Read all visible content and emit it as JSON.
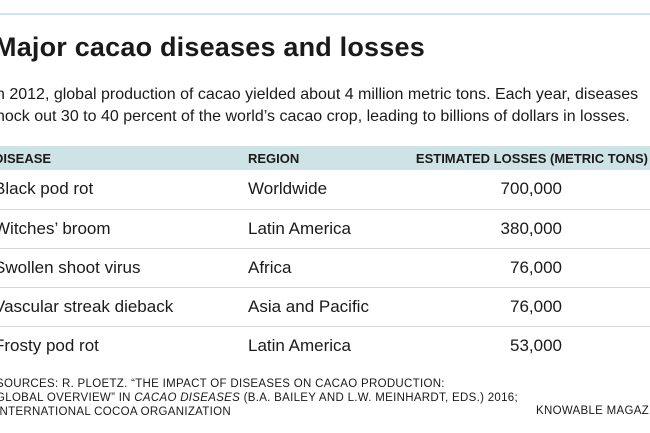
{
  "chart_data": {
    "type": "table",
    "title": "Major cacao diseases and losses",
    "intro_lines": [
      "n 2012, global production of cacao yielded about 4 million metric tons. Each year, diseases",
      "nock out 30 to 40 percent of the world’s cacao crop, leading to billions of dollars in losses."
    ],
    "columns": [
      "DISEASE",
      "REGION",
      "ESTIMATED LOSSES (METRIC TONS)"
    ],
    "rows": [
      {
        "disease": "Black pod rot",
        "region": "Worldwide",
        "losses": "700,000"
      },
      {
        "disease": "Witches’ broom",
        "region": "Latin America",
        "losses": "380,000"
      },
      {
        "disease": "Swollen shoot virus",
        "region": "Africa",
        "losses": "76,000"
      },
      {
        "disease": "Vascular streak dieback",
        "region": "Asia and Pacific",
        "losses": "76,000"
      },
      {
        "disease": "Frosty pod rot",
        "region": "Latin America",
        "losses": "53,000"
      }
    ],
    "sources": {
      "line1": "SOURCES: R. PLOETZ. “THE IMPACT OF DISEASES ON CACAO PRODUCTION:",
      "line2_prefix": "GLOBAL OVERVIEW” IN ",
      "line2_italic": "CACAO DISEASES",
      "line2_suffix": " (B.A. BAILEY AND L.W. MEINHARDT, EDS.) 2016;",
      "line3": "INTERNATIONAL COCOA ORGANIZATION"
    },
    "credit": "KNOWABLE MAGAZINE"
  },
  "colors": {
    "header_band": "#cde3e5",
    "top_rule": "#d6e6e8",
    "row_divider": "#d6d6d6",
    "text": "#1a1a1a"
  }
}
